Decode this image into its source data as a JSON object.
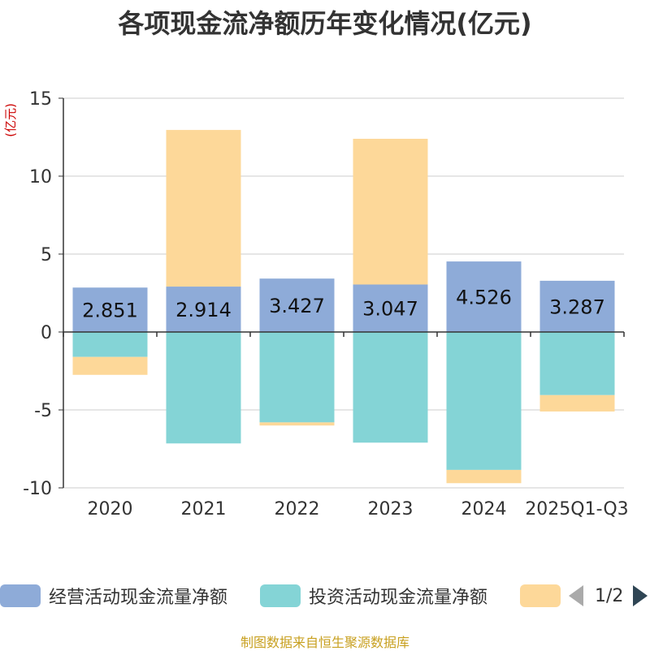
{
  "title": "各项现金流净额历年变化情况(亿元)",
  "source": "制图数据来自恒生聚源数据库",
  "pager": {
    "text": "1/2",
    "prev_icon": "triangle-left-icon",
    "next_icon": "triangle-right-icon"
  },
  "colors": {
    "operating": "#8eabd8",
    "investing": "#84d4d6",
    "financing": "#fdd899",
    "grid": "#cccccc",
    "axis": "#333333",
    "unit": "#cc0000"
  },
  "chart_data": {
    "type": "bar",
    "stacked": true,
    "title": "各项现金流净额历年变化情况(亿元)",
    "ylabel": "(亿元)",
    "ylim": [
      -10,
      15
    ],
    "yticks": [
      -10,
      -5,
      0,
      5,
      10,
      15
    ],
    "categories": [
      "2020",
      "2021",
      "2022",
      "2023",
      "2024",
      "2025Q1-Q3"
    ],
    "series": [
      {
        "name": "经营活动现金流量净额",
        "values": [
          2.851,
          2.914,
          3.427,
          3.047,
          4.526,
          3.287
        ],
        "labels": [
          "2.851",
          "2.914",
          "3.427",
          "3.047",
          "4.526",
          "3.287"
        ]
      },
      {
        "name": "投资活动现金流量净额",
        "values": [
          -1.6,
          -7.15,
          -5.8,
          -7.1,
          -8.85,
          -4.05
        ]
      },
      {
        "name": "",
        "values": [
          -1.15,
          10.05,
          -0.2,
          9.35,
          -0.85,
          -1.05
        ]
      }
    ],
    "legend": [
      "经营活动现金流量净额",
      "投资活动现金流量净额",
      ""
    ]
  }
}
